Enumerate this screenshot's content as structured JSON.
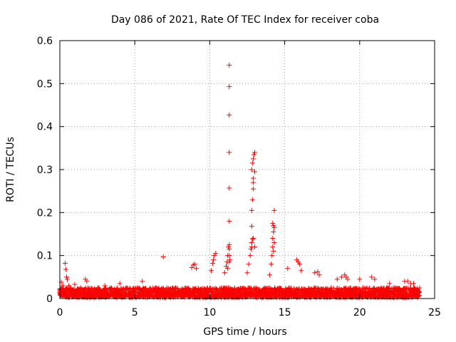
{
  "chart_data": {
    "type": "scatter",
    "title": "Day 086 of 2021, Rate Of TEC Index for receiver coba",
    "xlabel": "GPS time / hours",
    "ylabel": "ROTI / TECUs",
    "xlim": [
      0,
      25
    ],
    "ylim": [
      0,
      0.6
    ],
    "xticks": [
      0,
      5,
      10,
      15,
      20,
      25
    ],
    "xtick_labels": [
      "0",
      "5",
      "10",
      "15",
      "20",
      "25"
    ],
    "yticks": [
      0,
      0.1,
      0.2,
      0.3,
      0.4,
      0.5,
      0.6
    ],
    "ytick_labels": [
      "0",
      "0.1",
      "0.2",
      "0.3",
      "0.4",
      "0.5",
      "0.6"
    ],
    "grid": true,
    "marker": "plus",
    "color": "#ff0000",
    "series": [
      {
        "x": [
          0.1,
          0.2,
          0.35,
          0.4,
          0.45,
          0.5,
          0.6,
          1.0,
          1.7,
          1.8,
          3.0,
          4.0,
          5.5,
          6.9,
          8.8,
          8.9,
          9.0,
          9.1,
          10.1,
          10.2,
          10.25,
          10.3,
          10.4,
          11.0,
          11.1,
          11.15,
          11.2,
          11.25,
          11.3,
          11.3,
          11.3,
          11.35,
          11.3,
          11.3,
          11.3,
          11.3,
          11.3,
          11.3,
          11.2,
          11.3,
          12.5,
          12.6,
          12.7,
          12.75,
          12.8,
          12.8,
          12.8,
          12.85,
          12.9,
          12.9,
          12.9,
          12.8,
          12.85,
          12.9,
          12.95,
          13.0,
          13.0,
          12.8,
          12.85,
          12.9,
          13.0,
          14.0,
          14.1,
          14.15,
          14.2,
          14.2,
          14.25,
          14.3,
          14.25,
          14.2,
          14.3,
          14.3,
          14.25,
          15.2,
          15.8,
          15.9,
          16.0,
          16.1,
          17.0,
          17.2,
          17.3,
          18.5,
          18.8,
          19.0,
          19.1,
          19.2,
          20.0,
          20.8,
          21.0,
          22.0,
          23.0,
          23.2,
          23.4,
          23.6,
          23.9
        ],
        "y": [
          0.038,
          0.03,
          0.082,
          0.068,
          0.05,
          0.045,
          0.03,
          0.033,
          0.045,
          0.04,
          0.03,
          0.035,
          0.04,
          0.097,
          0.072,
          0.078,
          0.08,
          0.07,
          0.065,
          0.082,
          0.09,
          0.1,
          0.105,
          0.06,
          0.075,
          0.085,
          0.1,
          0.12,
          0.115,
          0.125,
          0.1,
          0.09,
          0.18,
          0.257,
          0.34,
          0.427,
          0.493,
          0.543,
          0.07,
          0.085,
          0.06,
          0.08,
          0.1,
          0.115,
          0.13,
          0.168,
          0.205,
          0.23,
          0.255,
          0.27,
          0.28,
          0.3,
          0.315,
          0.325,
          0.335,
          0.34,
          0.295,
          0.12,
          0.138,
          0.14,
          0.12,
          0.055,
          0.08,
          0.1,
          0.12,
          0.14,
          0.155,
          0.165,
          0.17,
          0.175,
          0.205,
          0.13,
          0.11,
          0.07,
          0.09,
          0.085,
          0.08,
          0.065,
          0.06,
          0.062,
          0.055,
          0.045,
          0.05,
          0.055,
          0.05,
          0.045,
          0.045,
          0.05,
          0.045,
          0.035,
          0.04,
          0.04,
          0.035,
          0.035,
          0.02
        ]
      }
    ]
  }
}
